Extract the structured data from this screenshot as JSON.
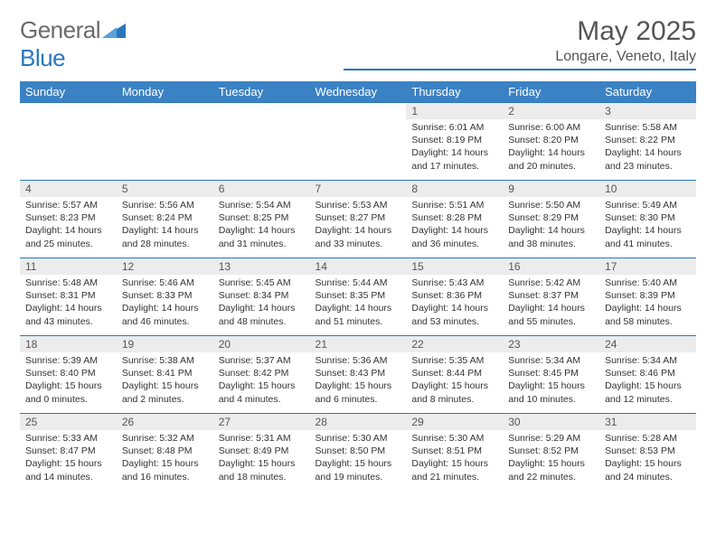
{
  "brand": {
    "part1": "General",
    "part2": "Blue"
  },
  "title": "May 2025",
  "location": "Longare, Veneto, Italy",
  "colors": {
    "header_bg": "#3b82c4",
    "header_text": "#ffffff",
    "border": "#2a77bd",
    "daynum_bg": "#ececec",
    "text_muted": "#555555",
    "text": "#333333",
    "logo_gray": "#6a6a6a",
    "logo_blue": "#2a77bd"
  },
  "weekdays": [
    "Sunday",
    "Monday",
    "Tuesday",
    "Wednesday",
    "Thursday",
    "Friday",
    "Saturday"
  ],
  "weeks": [
    [
      {
        "n": "",
        "sunrise": "",
        "sunset": "",
        "daylight": ""
      },
      {
        "n": "",
        "sunrise": "",
        "sunset": "",
        "daylight": ""
      },
      {
        "n": "",
        "sunrise": "",
        "sunset": "",
        "daylight": ""
      },
      {
        "n": "",
        "sunrise": "",
        "sunset": "",
        "daylight": ""
      },
      {
        "n": "1",
        "sunrise": "Sunrise: 6:01 AM",
        "sunset": "Sunset: 8:19 PM",
        "daylight": "Daylight: 14 hours and 17 minutes."
      },
      {
        "n": "2",
        "sunrise": "Sunrise: 6:00 AM",
        "sunset": "Sunset: 8:20 PM",
        "daylight": "Daylight: 14 hours and 20 minutes."
      },
      {
        "n": "3",
        "sunrise": "Sunrise: 5:58 AM",
        "sunset": "Sunset: 8:22 PM",
        "daylight": "Daylight: 14 hours and 23 minutes."
      }
    ],
    [
      {
        "n": "4",
        "sunrise": "Sunrise: 5:57 AM",
        "sunset": "Sunset: 8:23 PM",
        "daylight": "Daylight: 14 hours and 25 minutes."
      },
      {
        "n": "5",
        "sunrise": "Sunrise: 5:56 AM",
        "sunset": "Sunset: 8:24 PM",
        "daylight": "Daylight: 14 hours and 28 minutes."
      },
      {
        "n": "6",
        "sunrise": "Sunrise: 5:54 AM",
        "sunset": "Sunset: 8:25 PM",
        "daylight": "Daylight: 14 hours and 31 minutes."
      },
      {
        "n": "7",
        "sunrise": "Sunrise: 5:53 AM",
        "sunset": "Sunset: 8:27 PM",
        "daylight": "Daylight: 14 hours and 33 minutes."
      },
      {
        "n": "8",
        "sunrise": "Sunrise: 5:51 AM",
        "sunset": "Sunset: 8:28 PM",
        "daylight": "Daylight: 14 hours and 36 minutes."
      },
      {
        "n": "9",
        "sunrise": "Sunrise: 5:50 AM",
        "sunset": "Sunset: 8:29 PM",
        "daylight": "Daylight: 14 hours and 38 minutes."
      },
      {
        "n": "10",
        "sunrise": "Sunrise: 5:49 AM",
        "sunset": "Sunset: 8:30 PM",
        "daylight": "Daylight: 14 hours and 41 minutes."
      }
    ],
    [
      {
        "n": "11",
        "sunrise": "Sunrise: 5:48 AM",
        "sunset": "Sunset: 8:31 PM",
        "daylight": "Daylight: 14 hours and 43 minutes."
      },
      {
        "n": "12",
        "sunrise": "Sunrise: 5:46 AM",
        "sunset": "Sunset: 8:33 PM",
        "daylight": "Daylight: 14 hours and 46 minutes."
      },
      {
        "n": "13",
        "sunrise": "Sunrise: 5:45 AM",
        "sunset": "Sunset: 8:34 PM",
        "daylight": "Daylight: 14 hours and 48 minutes."
      },
      {
        "n": "14",
        "sunrise": "Sunrise: 5:44 AM",
        "sunset": "Sunset: 8:35 PM",
        "daylight": "Daylight: 14 hours and 51 minutes."
      },
      {
        "n": "15",
        "sunrise": "Sunrise: 5:43 AM",
        "sunset": "Sunset: 8:36 PM",
        "daylight": "Daylight: 14 hours and 53 minutes."
      },
      {
        "n": "16",
        "sunrise": "Sunrise: 5:42 AM",
        "sunset": "Sunset: 8:37 PM",
        "daylight": "Daylight: 14 hours and 55 minutes."
      },
      {
        "n": "17",
        "sunrise": "Sunrise: 5:40 AM",
        "sunset": "Sunset: 8:39 PM",
        "daylight": "Daylight: 14 hours and 58 minutes."
      }
    ],
    [
      {
        "n": "18",
        "sunrise": "Sunrise: 5:39 AM",
        "sunset": "Sunset: 8:40 PM",
        "daylight": "Daylight: 15 hours and 0 minutes."
      },
      {
        "n": "19",
        "sunrise": "Sunrise: 5:38 AM",
        "sunset": "Sunset: 8:41 PM",
        "daylight": "Daylight: 15 hours and 2 minutes."
      },
      {
        "n": "20",
        "sunrise": "Sunrise: 5:37 AM",
        "sunset": "Sunset: 8:42 PM",
        "daylight": "Daylight: 15 hours and 4 minutes."
      },
      {
        "n": "21",
        "sunrise": "Sunrise: 5:36 AM",
        "sunset": "Sunset: 8:43 PM",
        "daylight": "Daylight: 15 hours and 6 minutes."
      },
      {
        "n": "22",
        "sunrise": "Sunrise: 5:35 AM",
        "sunset": "Sunset: 8:44 PM",
        "daylight": "Daylight: 15 hours and 8 minutes."
      },
      {
        "n": "23",
        "sunrise": "Sunrise: 5:34 AM",
        "sunset": "Sunset: 8:45 PM",
        "daylight": "Daylight: 15 hours and 10 minutes."
      },
      {
        "n": "24",
        "sunrise": "Sunrise: 5:34 AM",
        "sunset": "Sunset: 8:46 PM",
        "daylight": "Daylight: 15 hours and 12 minutes."
      }
    ],
    [
      {
        "n": "25",
        "sunrise": "Sunrise: 5:33 AM",
        "sunset": "Sunset: 8:47 PM",
        "daylight": "Daylight: 15 hours and 14 minutes."
      },
      {
        "n": "26",
        "sunrise": "Sunrise: 5:32 AM",
        "sunset": "Sunset: 8:48 PM",
        "daylight": "Daylight: 15 hours and 16 minutes."
      },
      {
        "n": "27",
        "sunrise": "Sunrise: 5:31 AM",
        "sunset": "Sunset: 8:49 PM",
        "daylight": "Daylight: 15 hours and 18 minutes."
      },
      {
        "n": "28",
        "sunrise": "Sunrise: 5:30 AM",
        "sunset": "Sunset: 8:50 PM",
        "daylight": "Daylight: 15 hours and 19 minutes."
      },
      {
        "n": "29",
        "sunrise": "Sunrise: 5:30 AM",
        "sunset": "Sunset: 8:51 PM",
        "daylight": "Daylight: 15 hours and 21 minutes."
      },
      {
        "n": "30",
        "sunrise": "Sunrise: 5:29 AM",
        "sunset": "Sunset: 8:52 PM",
        "daylight": "Daylight: 15 hours and 22 minutes."
      },
      {
        "n": "31",
        "sunrise": "Sunrise: 5:28 AM",
        "sunset": "Sunset: 8:53 PM",
        "daylight": "Daylight: 15 hours and 24 minutes."
      }
    ]
  ]
}
